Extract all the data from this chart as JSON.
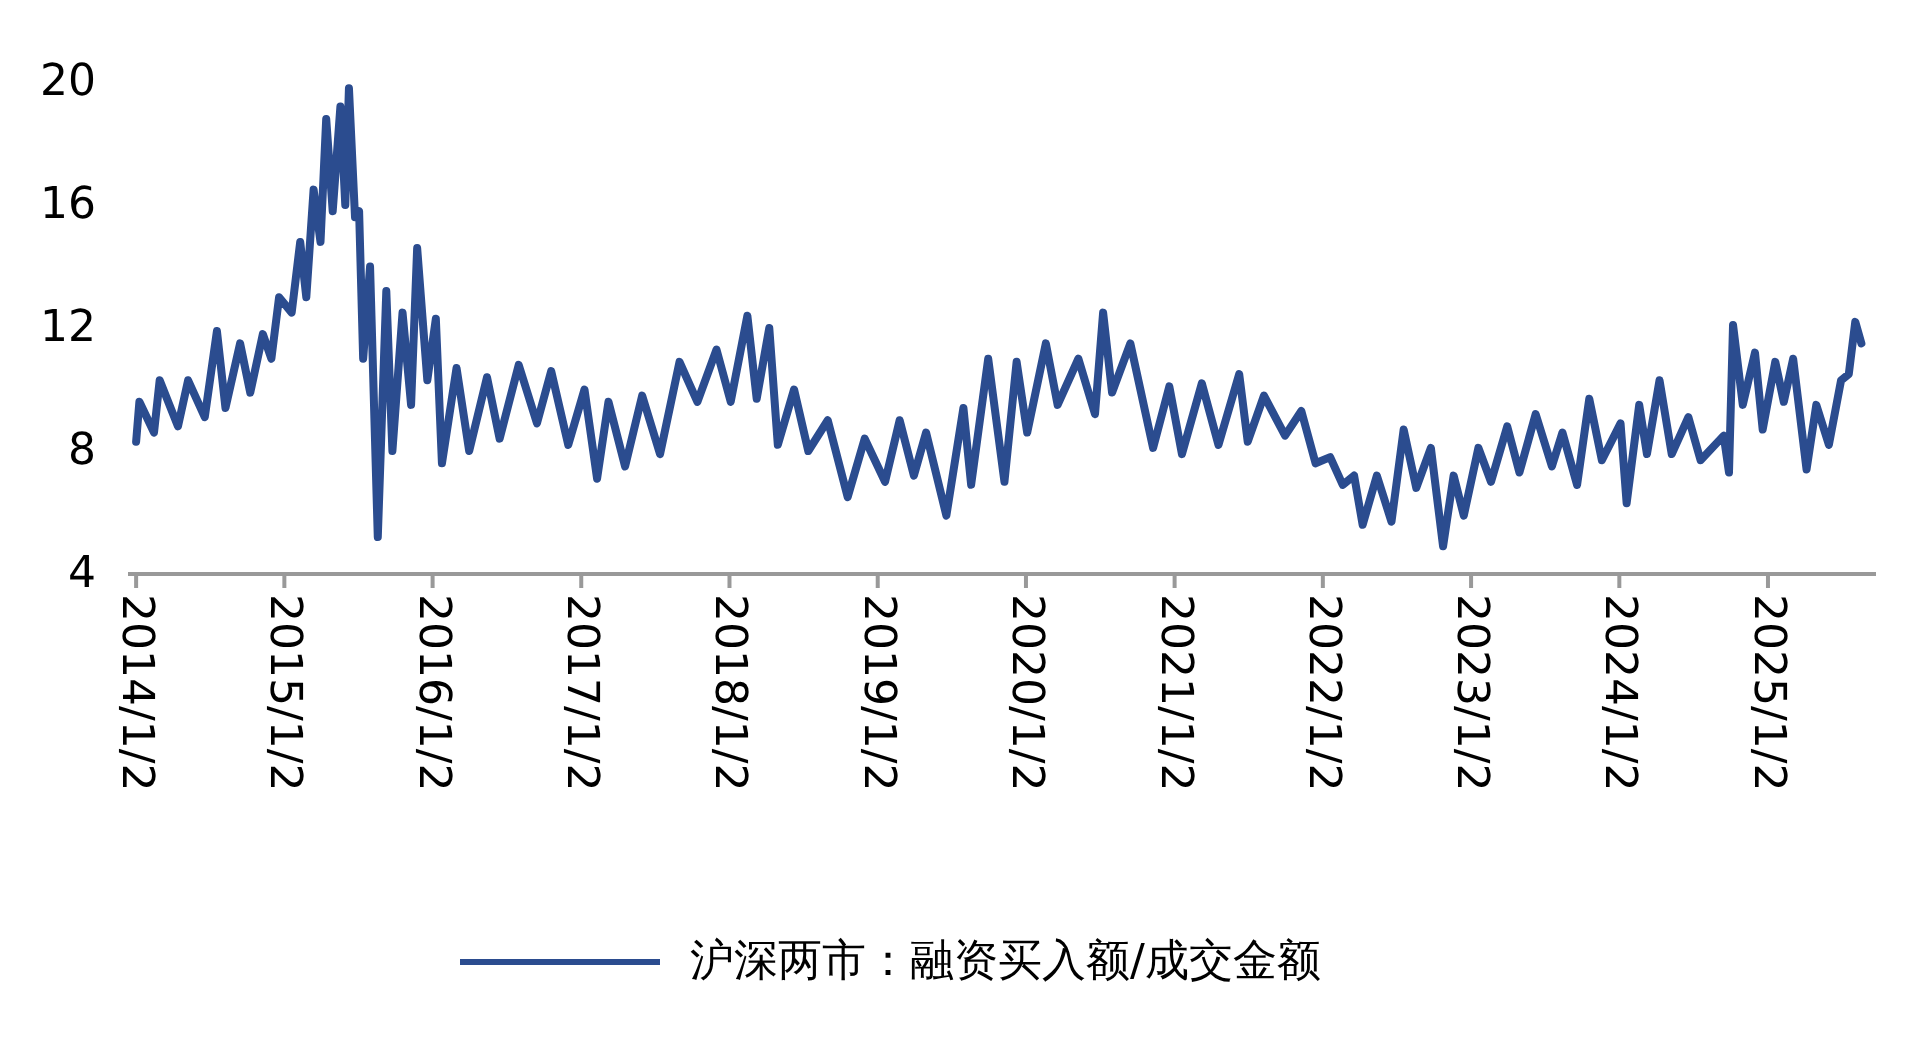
{
  "chart_data": {
    "type": "line",
    "x": [
      "2014-01-02",
      "2014-01-10",
      "2014-02-15",
      "2014-03-01",
      "2014-04-15",
      "2014-05-10",
      "2014-06-20",
      "2014-07-20",
      "2014-08-10",
      "2014-09-15",
      "2014-10-10",
      "2014-11-10",
      "2014-12-01",
      "2014-12-20",
      "2015-01-20",
      "2015-02-10",
      "2015-02-25",
      "2015-03-15",
      "2015-04-01",
      "2015-04-15",
      "2015-05-01",
      "2015-05-20",
      "2015-06-01",
      "2015-06-10",
      "2015-06-25",
      "2015-07-05",
      "2015-07-15",
      "2015-08-01",
      "2015-08-20",
      "2015-09-10",
      "2015-09-25",
      "2015-10-20",
      "2015-11-10",
      "2015-11-25",
      "2015-12-20",
      "2016-01-10",
      "2016-01-25",
      "2016-03-01",
      "2016-04-01",
      "2016-05-15",
      "2016-06-15",
      "2016-08-01",
      "2016-09-15",
      "2016-10-20",
      "2016-12-01",
      "2017-01-10",
      "2017-02-10",
      "2017-03-10",
      "2017-04-20",
      "2017-06-01",
      "2017-07-15",
      "2017-09-01",
      "2017-10-15",
      "2017-12-01",
      "2018-01-05",
      "2018-02-15",
      "2018-03-10",
      "2018-04-10",
      "2018-05-01",
      "2018-06-10",
      "2018-07-15",
      "2018-09-01",
      "2018-10-20",
      "2018-12-01",
      "2019-01-20",
      "2019-02-25",
      "2019-04-01",
      "2019-05-01",
      "2019-06-20",
      "2019-08-01",
      "2019-08-20",
      "2019-10-01",
      "2019-11-10",
      "2019-12-10",
      "2020-01-05",
      "2020-02-20",
      "2020-03-20",
      "2020-05-10",
      "2020-06-20",
      "2020-07-10",
      "2020-08-01",
      "2020-09-15",
      "2020-11-10",
      "2020-12-20",
      "2021-01-20",
      "2021-03-10",
      "2021-04-20",
      "2021-06-10",
      "2021-07-01",
      "2021-08-10",
      "2021-10-01",
      "2021-11-10",
      "2021-12-15",
      "2022-01-20",
      "2022-02-20",
      "2022-03-20",
      "2022-04-10",
      "2022-05-15",
      "2022-06-20",
      "2022-07-20",
      "2022-08-20",
      "2022-09-25",
      "2022-10-25",
      "2022-11-20",
      "2022-12-15",
      "2023-01-20",
      "2023-02-20",
      "2023-04-01",
      "2023-05-01",
      "2023-06-10",
      "2023-07-20",
      "2023-08-15",
      "2023-09-20",
      "2023-10-20",
      "2023-11-20",
      "2024-01-05",
      "2024-01-20",
      "2024-02-20",
      "2024-03-10",
      "2024-04-10",
      "2024-05-10",
      "2024-06-20",
      "2024-07-20",
      "2024-09-15",
      "2024-09-28",
      "2024-10-08",
      "2024-11-01",
      "2024-12-01",
      "2024-12-20",
      "2025-01-20",
      "2025-02-10",
      "2025-03-05",
      "2025-04-07",
      "2025-05-01",
      "2025-06-01",
      "2025-07-01",
      "2025-07-20",
      "2025-08-05",
      "2025-08-20"
    ],
    "series": [
      {
        "name": "沪深两市：融资买入额/成交金额",
        "color": "#2b4c8f",
        "values": [
          8.3,
          9.6,
          8.6,
          10.3,
          8.8,
          10.3,
          9.1,
          11.9,
          9.4,
          11.5,
          9.9,
          11.8,
          11.0,
          13.0,
          12.5,
          14.8,
          13.0,
          16.5,
          14.8,
          18.8,
          15.8,
          19.2,
          16.0,
          19.8,
          15.6,
          15.8,
          11.0,
          14.0,
          5.2,
          13.2,
          8.0,
          12.5,
          9.5,
          14.6,
          10.3,
          12.3,
          7.6,
          10.7,
          8.0,
          10.4,
          8.4,
          10.8,
          8.9,
          10.6,
          8.2,
          10.0,
          7.1,
          9.6,
          7.5,
          9.8,
          7.9,
          10.9,
          9.6,
          11.3,
          9.6,
          12.4,
          9.7,
          12.0,
          8.2,
          10.0,
          8.0,
          9.0,
          6.5,
          8.4,
          7.0,
          9.0,
          7.2,
          8.6,
          5.9,
          9.4,
          6.9,
          11.0,
          7.0,
          10.9,
          8.6,
          11.5,
          9.5,
          11.0,
          9.2,
          12.5,
          9.9,
          11.5,
          8.1,
          10.1,
          7.9,
          10.2,
          8.2,
          10.5,
          8.3,
          9.8,
          8.5,
          9.3,
          7.6,
          7.8,
          6.9,
          7.2,
          5.6,
          7.2,
          5.7,
          8.7,
          6.8,
          8.1,
          4.9,
          7.2,
          5.9,
          8.1,
          7.0,
          8.8,
          7.3,
          9.2,
          7.5,
          8.6,
          6.9,
          9.7,
          7.7,
          8.9,
          6.3,
          9.5,
          7.9,
          10.3,
          7.9,
          9.1,
          7.7,
          8.5,
          7.3,
          12.1,
          9.5,
          11.2,
          8.7,
          10.9,
          9.6,
          11.0,
          7.4,
          9.5,
          8.2,
          10.3,
          10.5,
          12.2,
          11.5
        ]
      }
    ],
    "xlim": [
      "2013-12-13",
      "2025-09-25"
    ],
    "xticks": [
      {
        "value": "2014-01-02",
        "label": "2014/1/2"
      },
      {
        "value": "2015-01-02",
        "label": "2015/1/2"
      },
      {
        "value": "2016-01-02",
        "label": "2016/1/2"
      },
      {
        "value": "2017-01-02",
        "label": "2017/1/2"
      },
      {
        "value": "2018-01-02",
        "label": "2018/1/2"
      },
      {
        "value": "2019-01-02",
        "label": "2019/1/2"
      },
      {
        "value": "2020-01-02",
        "label": "2020/1/2"
      },
      {
        "value": "2021-01-02",
        "label": "2021/1/2"
      },
      {
        "value": "2022-01-02",
        "label": "2022/1/2"
      },
      {
        "value": "2023-01-02",
        "label": "2023/1/2"
      },
      {
        "value": "2024-01-02",
        "label": "2024/1/2"
      },
      {
        "value": "2025-01-02",
        "label": "2025/1/2"
      }
    ],
    "ylim": [
      4,
      20
    ],
    "yticks": [
      4,
      8,
      12,
      16,
      20
    ],
    "line_style": "solid",
    "legend": "bottom",
    "grid": false
  }
}
